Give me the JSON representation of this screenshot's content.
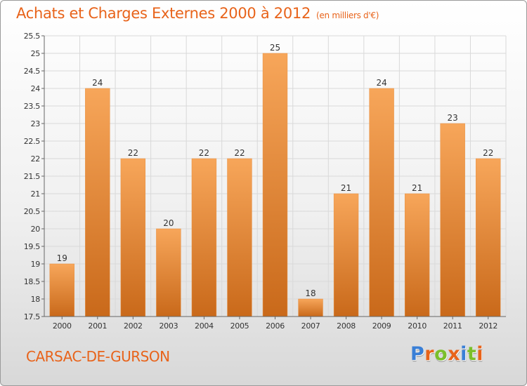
{
  "header": {
    "title": "Achats et Charges Externes 2000 à 2012",
    "subtitle": "(en milliers d'€)"
  },
  "footer": {
    "place": "CARSAC-DE-GURSON",
    "logo_letters": [
      {
        "char": "P",
        "color": "#3a7fd6"
      },
      {
        "char": "r",
        "color": "#e8631a"
      },
      {
        "char": "o",
        "color": "#7bbf2a"
      },
      {
        "char": "x",
        "color": "#e8631a"
      },
      {
        "char": "i",
        "color": "#3a7fd6"
      },
      {
        "char": "t",
        "color": "#7bbf2a"
      },
      {
        "char": "i",
        "color": "#e8631a"
      }
    ]
  },
  "colors": {
    "bar_top": "#f7a65a",
    "bar_bottom": "#c9691a",
    "accent": "#e8631a",
    "axis": "#666666",
    "grid": "#d9d9d9"
  },
  "chart_data": {
    "type": "bar",
    "categories": [
      "2000",
      "2001",
      "2002",
      "2003",
      "2004",
      "2005",
      "2006",
      "2007",
      "2008",
      "2009",
      "2010",
      "2011",
      "2012"
    ],
    "values": [
      19,
      24,
      22,
      20,
      22,
      22,
      25,
      18,
      21,
      24,
      21,
      23,
      22
    ],
    "data_labels": [
      "19",
      "24",
      "22",
      "20",
      "22",
      "22",
      "25",
      "18",
      "21",
      "24",
      "21",
      "23",
      "22"
    ],
    "ylim": [
      17.5,
      25.5
    ],
    "yticks": [
      17.5,
      18,
      18.5,
      19,
      19.5,
      20,
      20.5,
      21,
      21.5,
      22,
      22.5,
      23,
      23.5,
      24,
      24.5,
      25,
      25.5
    ],
    "ytick_labels": [
      "17.5",
      "18",
      "18.5",
      "19",
      "19.5",
      "20",
      "20.5",
      "21",
      "21.5",
      "22",
      "22.5",
      "23",
      "23.5",
      "24",
      "24.5",
      "25",
      "25.5"
    ],
    "grid": true,
    "legend": "none"
  }
}
